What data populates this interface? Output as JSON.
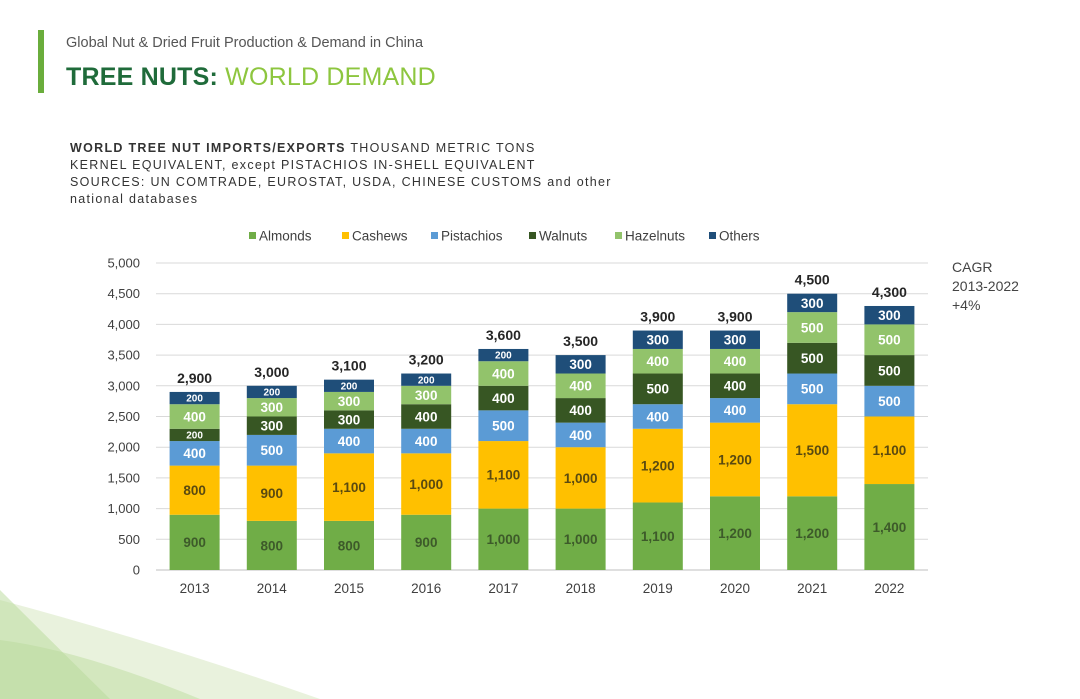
{
  "header": {
    "subtitle": "Global Nut & Dried Fruit Production & Demand in China",
    "title_part1": "TREE NUTS:",
    "title_part2": "WORLD DEMAND"
  },
  "caption": {
    "line1_bold": "WORLD TREE NUT IMPORTS/EXPORTS",
    "line1_rest": "THOUSAND METRIC TONS",
    "line2": "KERNEL EQUIVALENT, except PISTACHIOS IN-SHELL EQUIVALENT",
    "line3": "SOURCES: UN COMTRADE, EUROSTAT, USDA, CHINESE CUSTOMS and other",
    "line4": "national databases"
  },
  "cagr": {
    "label": "CAGR",
    "period": "2013-2022",
    "value": "+4%"
  },
  "colors": {
    "accent": "#6aad3c",
    "title_dark": "#1f6b3a",
    "title_light": "#8dc63f",
    "Almonds": "#70ad47",
    "Cashews": "#ffc000",
    "Pistachios": "#5b9bd5",
    "Walnuts": "#375623",
    "Hazelnuts": "#92c36b",
    "Others": "#1f4e79"
  },
  "chart_data": {
    "type": "bar",
    "stacked": true,
    "categories": [
      "2013",
      "2014",
      "2015",
      "2016",
      "2017",
      "2018",
      "2019",
      "2020",
      "2021",
      "2022"
    ],
    "series": [
      {
        "name": "Almonds",
        "values": [
          900,
          800,
          800,
          900,
          1000,
          1000,
          1100,
          1200,
          1200,
          1400
        ]
      },
      {
        "name": "Cashews",
        "values": [
          800,
          900,
          1100,
          1000,
          1100,
          1000,
          1200,
          1200,
          1500,
          1100
        ]
      },
      {
        "name": "Pistachios",
        "values": [
          400,
          500,
          400,
          400,
          500,
          400,
          400,
          400,
          500,
          500
        ]
      },
      {
        "name": "Walnuts",
        "values": [
          200,
          300,
          300,
          400,
          400,
          400,
          500,
          400,
          500,
          500
        ]
      },
      {
        "name": "Hazelnuts",
        "values": [
          400,
          300,
          300,
          300,
          400,
          400,
          400,
          400,
          500,
          500
        ]
      },
      {
        "name": "Others",
        "values": [
          200,
          200,
          200,
          200,
          200,
          300,
          300,
          300,
          300,
          300
        ]
      }
    ],
    "segment_labels": [
      [
        "900",
        "800",
        "800",
        "900",
        "1,000",
        "1,000",
        "1,100",
        "1,200",
        "1,200",
        "1,400"
      ],
      [
        "800",
        "900",
        "1,100",
        "1,000",
        "1,100",
        "1,000",
        "1,200",
        "1,200",
        "1,500",
        "1,100"
      ],
      [
        "400",
        "500",
        "400",
        "400",
        "500",
        "400",
        "400",
        "400",
        "500",
        "500"
      ],
      [
        "200",
        "300",
        "300",
        "400",
        "400",
        "400",
        "500",
        "400",
        "500",
        "500"
      ],
      [
        "400",
        "300",
        "300",
        "300",
        "400",
        "400",
        "400",
        "400",
        "500",
        "500"
      ],
      [
        "200",
        "200",
        "200",
        "200",
        "200",
        "300",
        "300",
        "300",
        "300",
        "300"
      ]
    ],
    "totals": [
      2900,
      3000,
      3100,
      3200,
      3600,
      3500,
      3900,
      3900,
      4500,
      4300
    ],
    "total_labels": [
      "2,900",
      "3,000",
      "3,100",
      "3,200",
      "3,600",
      "3,500",
      "3,900",
      "3,900",
      "4,500",
      "4,300"
    ],
    "ylim": [
      0,
      5000
    ],
    "yticks": [
      0,
      500,
      1000,
      1500,
      2000,
      2500,
      3000,
      3500,
      4000,
      4500,
      5000
    ],
    "ytick_labels": [
      "0",
      "500",
      "1,000",
      "1,500",
      "2,000",
      "2,500",
      "3,000",
      "3,500",
      "4,000",
      "4,500",
      "5,000"
    ],
    "grid": true,
    "legend_position": "top",
    "xlabel": "",
    "ylabel": ""
  }
}
